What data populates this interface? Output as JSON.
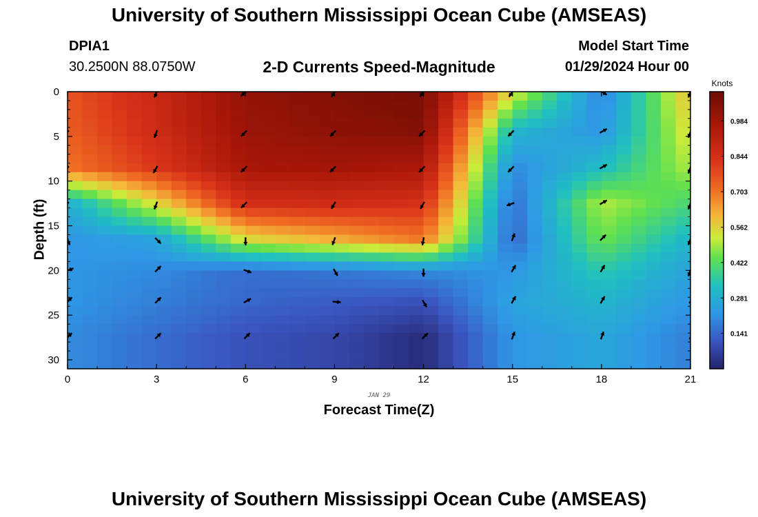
{
  "title_top": "University of Southern Mississippi Ocean Cube (AMSEAS)",
  "title_bottom": "University of Southern Mississippi Ocean Cube (AMSEAS)",
  "station": {
    "id": "DPIA1",
    "location": "30.2500N  88.0750W"
  },
  "model_start": {
    "label": "Model Start Time",
    "value": "01/29/2024 Hour 00"
  },
  "chart_data": {
    "type": "heatmap",
    "title": "2-D Currents Speed-Magnitude",
    "xlabel": "Forecast Time(Z)",
    "ylabel": "Depth (ft)",
    "date_label": "JAN 29",
    "x_range": [
      0,
      21
    ],
    "y_range": [
      0,
      31
    ],
    "y_inverted": true,
    "x_ticks": [
      0,
      3,
      6,
      9,
      12,
      15,
      18,
      21
    ],
    "y_ticks": [
      0,
      5,
      10,
      15,
      20,
      25,
      30
    ],
    "colorbar": {
      "label": "Knots",
      "min": 0.0,
      "max": 1.1,
      "ticks": [
        0.141,
        0.281,
        0.422,
        0.562,
        0.703,
        0.844,
        0.984
      ],
      "tick_labels": [
        "0.141",
        "0.281",
        "0.422",
        "0.562",
        "0.703",
        "0.844",
        "0.984"
      ]
    },
    "times": [
      0,
      3,
      6,
      9,
      12,
      15,
      18,
      21
    ],
    "depths": [
      0,
      4.5,
      8.5,
      12.5,
      16.5,
      20,
      23.5,
      27.5
    ],
    "speed_knots": [
      [
        0.76,
        0.88,
        1.02,
        1.05,
        1.08,
        0.55,
        0.18,
        0.6
      ],
      [
        0.74,
        0.86,
        1.0,
        1.03,
        1.05,
        0.3,
        0.22,
        0.55
      ],
      [
        0.7,
        0.82,
        0.97,
        0.98,
        0.96,
        0.2,
        0.32,
        0.5
      ],
      [
        0.28,
        0.55,
        0.85,
        0.86,
        0.84,
        0.15,
        0.5,
        0.4
      ],
      [
        0.22,
        0.25,
        0.55,
        0.62,
        0.7,
        0.14,
        0.45,
        0.3
      ],
      [
        0.22,
        0.2,
        0.15,
        0.17,
        0.2,
        0.22,
        0.35,
        0.25
      ],
      [
        0.22,
        0.18,
        0.14,
        0.12,
        0.1,
        0.25,
        0.3,
        0.22
      ],
      [
        0.2,
        0.15,
        0.1,
        0.08,
        0.02,
        0.22,
        0.26,
        0.18
      ]
    ],
    "arrow_direction_deg": [
      [
        225,
        200,
        225,
        210,
        215,
        215,
        120,
        200
      ],
      [
        225,
        200,
        225,
        225,
        225,
        225,
        60,
        200
      ],
      [
        225,
        210,
        225,
        225,
        225,
        225,
        60,
        200
      ],
      [
        225,
        200,
        225,
        210,
        210,
        250,
        60,
        200
      ],
      [
        160,
        135,
        180,
        200,
        190,
        20,
        45,
        200
      ],
      [
        70,
        45,
        110,
        150,
        180,
        30,
        30,
        200
      ],
      [
        45,
        45,
        60,
        95,
        150,
        30,
        30,
        45
      ],
      [
        45,
        45,
        45,
        45,
        45,
        20,
        20,
        30
      ]
    ]
  }
}
